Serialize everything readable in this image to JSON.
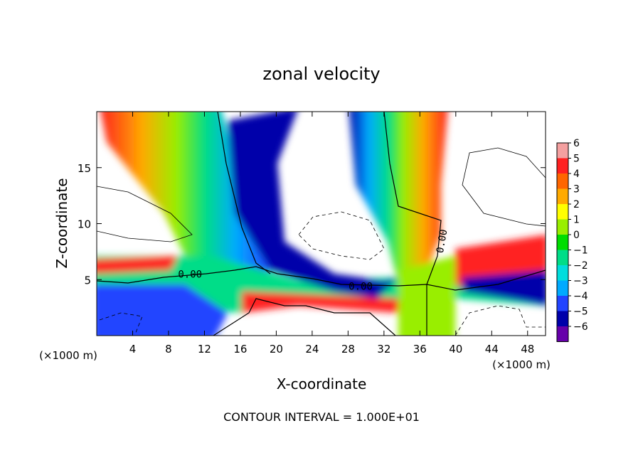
{
  "chart_data": {
    "type": "heatmap",
    "title": "zonal velocity",
    "xlabel": "X-coordinate",
    "ylabel": "Z-coordinate",
    "xunit": "(×1000 m)",
    "footer": "CONTOUR INTERVAL = 1.000E+01",
    "xlim": [
      0,
      50
    ],
    "ylim": [
      0,
      20
    ],
    "xticks": [
      4,
      8,
      12,
      16,
      20,
      24,
      28,
      32,
      36,
      40,
      44,
      48
    ],
    "yticks": [
      5,
      10,
      15
    ],
    "colorbar": {
      "levels": [
        6,
        5,
        4,
        3,
        2,
        1,
        0,
        -1,
        -2,
        -3,
        -4,
        -5,
        -6
      ],
      "labels": [
        "6",
        "5",
        "4",
        "3",
        "2",
        "1",
        "0",
        "−1",
        "−2",
        "−3",
        "−4",
        "−5",
        "−6"
      ],
      "colors": [
        "#f4a0a0",
        "#ff2020",
        "#ff6600",
        "#ffaa00",
        "#ffff00",
        "#99ee00",
        "#00dd00",
        "#00dd88",
        "#00dddd",
        "#00aaff",
        "#2244ff",
        "#0000aa",
        "#6600aa"
      ]
    },
    "contour_labels": [
      {
        "text": "0.00",
        "x": 10.4,
        "z": 5.5
      },
      {
        "text": "0.00",
        "x": 29.4,
        "z": 4.4
      },
      {
        "text": "0.00",
        "x": 38.8,
        "z": 8.7
      }
    ],
    "grid": false
  }
}
